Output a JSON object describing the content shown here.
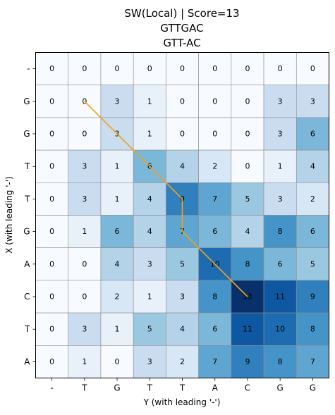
{
  "chart_data": {
    "type": "heatmap",
    "title_lines": [
      "SW(Local)  |  Score=13",
      "GTTGAC",
      "GTT-AC"
    ],
    "xlabel": "Y (with leading '-')",
    "ylabel": "X (with leading '-')",
    "x_categories": [
      "-",
      "T",
      "G",
      "T",
      "T",
      "A",
      "C",
      "G",
      "G"
    ],
    "y_categories": [
      "-",
      "G",
      "G",
      "T",
      "T",
      "G",
      "A",
      "C",
      "T",
      "A"
    ],
    "values": [
      [
        0,
        0,
        0,
        0,
        0,
        0,
        0,
        0,
        0
      ],
      [
        0,
        0,
        3,
        1,
        0,
        0,
        0,
        3,
        3
      ],
      [
        0,
        0,
        3,
        1,
        0,
        0,
        0,
        3,
        6
      ],
      [
        0,
        3,
        1,
        6,
        4,
        2,
        0,
        1,
        4
      ],
      [
        0,
        3,
        1,
        4,
        9,
        7,
        5,
        3,
        2
      ],
      [
        0,
        1,
        6,
        4,
        7,
        6,
        4,
        8,
        6
      ],
      [
        0,
        0,
        4,
        3,
        5,
        10,
        8,
        6,
        5
      ],
      [
        0,
        0,
        2,
        1,
        3,
        8,
        13,
        11,
        9
      ],
      [
        0,
        3,
        1,
        5,
        4,
        6,
        11,
        10,
        8
      ],
      [
        0,
        1,
        0,
        3,
        2,
        7,
        9,
        8,
        7
      ]
    ],
    "value_range": [
      0,
      13
    ],
    "colormap": "Blues",
    "traceback_path": [
      [
        1,
        1
      ],
      [
        2,
        2
      ],
      [
        3,
        3
      ],
      [
        4,
        4
      ],
      [
        5,
        4
      ],
      [
        6,
        5
      ],
      [
        7,
        6
      ]
    ],
    "path_color": "#f5a20f"
  }
}
